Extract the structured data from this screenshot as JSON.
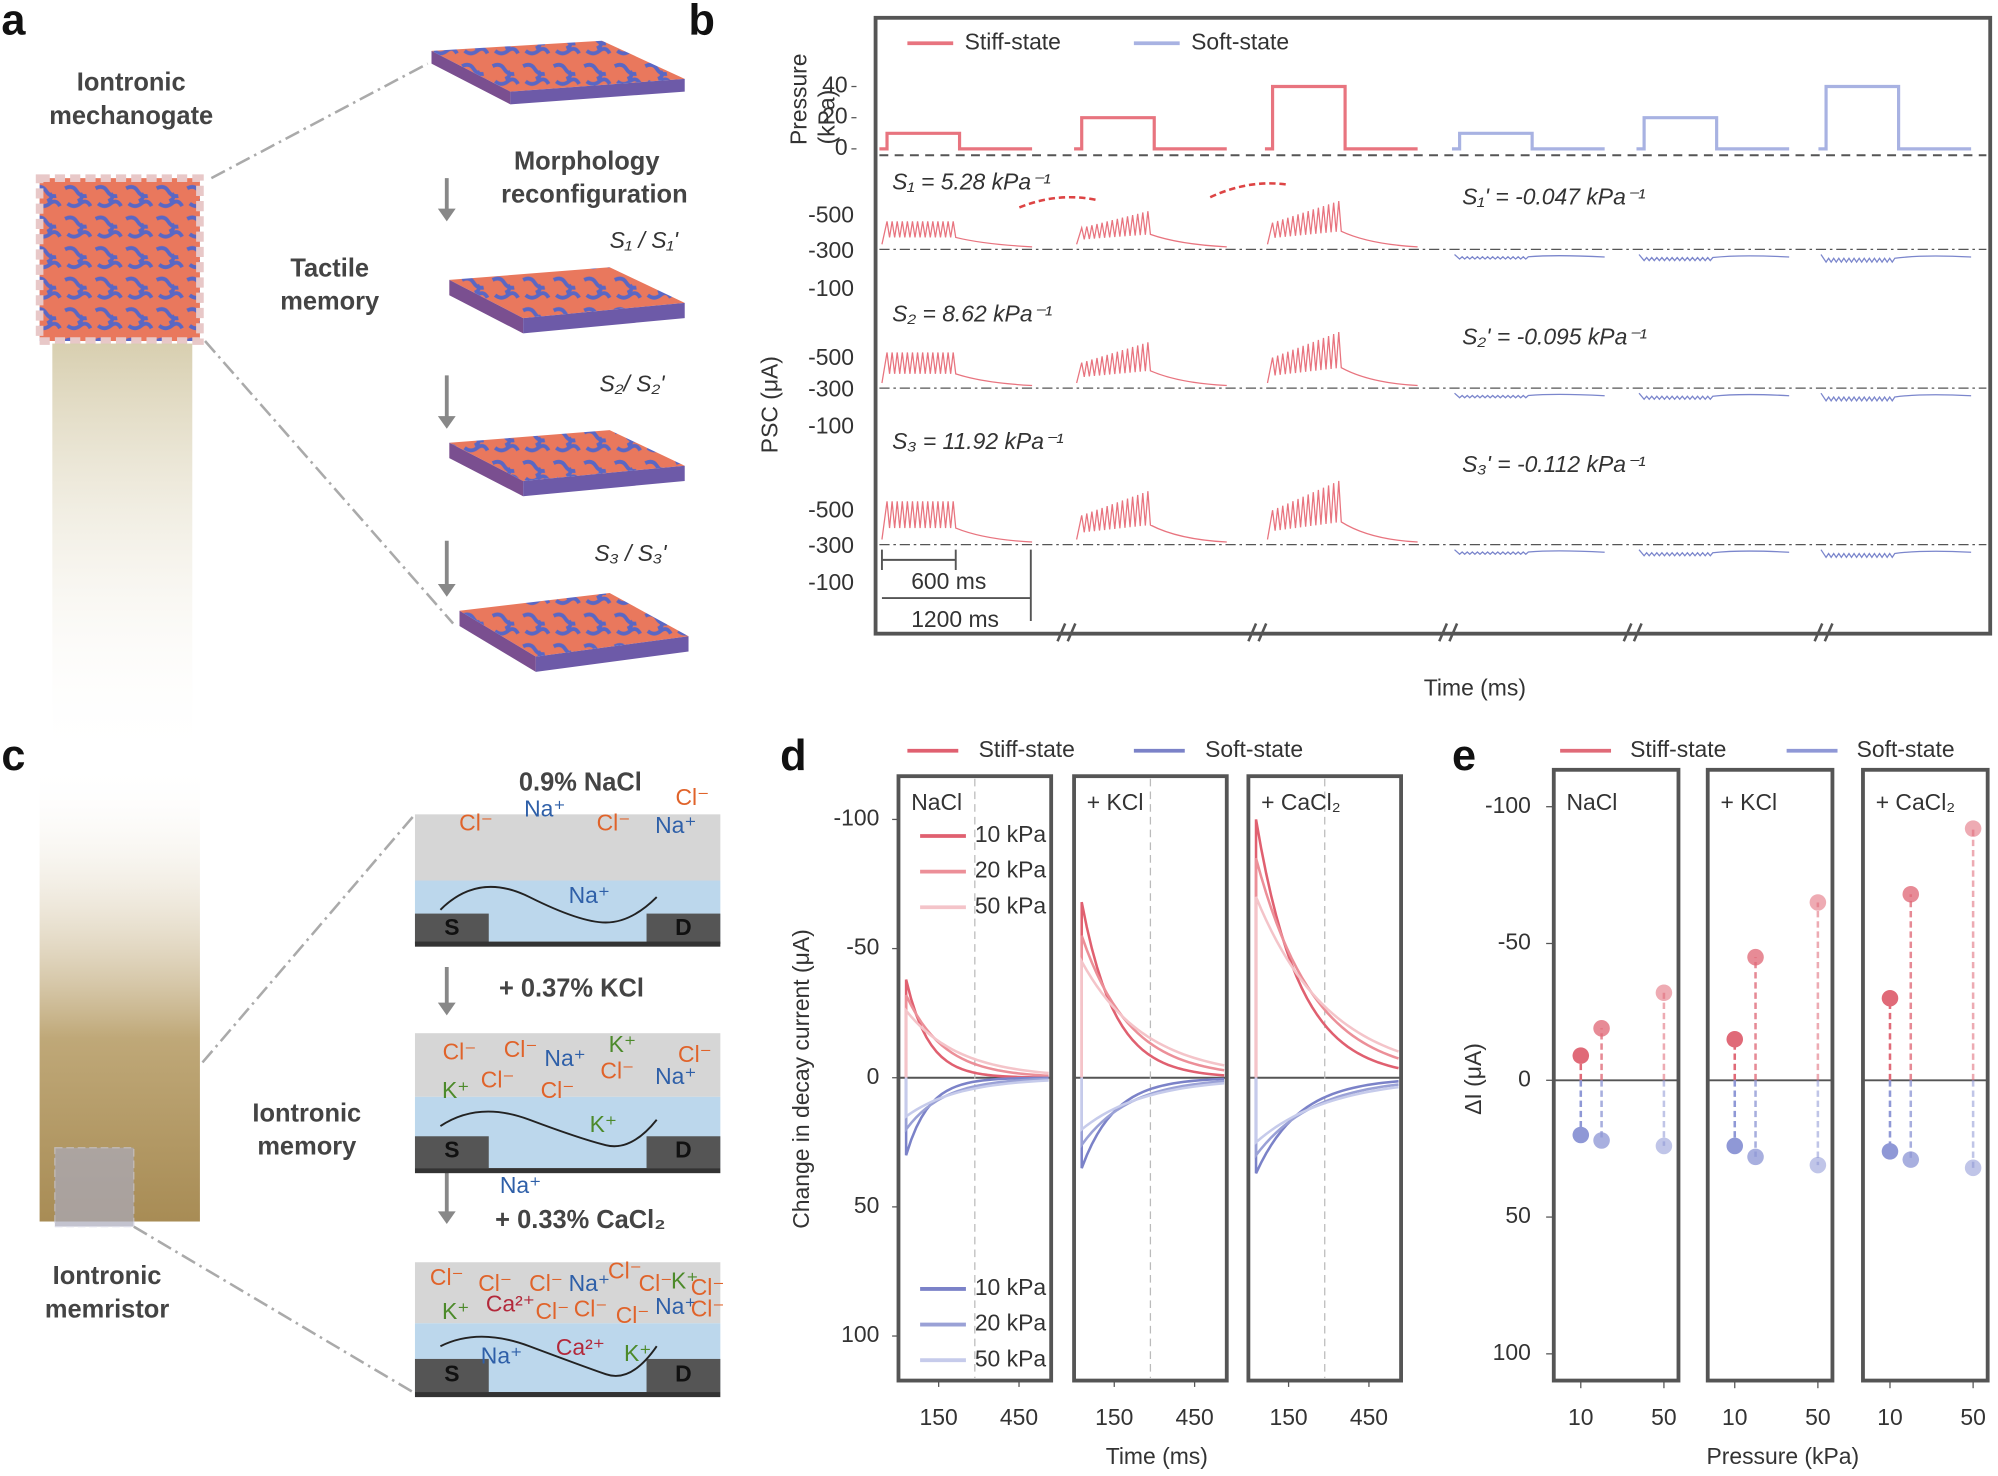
{
  "panel_labels": [
    "a",
    "b",
    "c",
    "d",
    "e"
  ],
  "panel_a": {
    "title": [
      "Iontronic",
      "mechanogate"
    ],
    "step": [
      "Morphology",
      "reconfiguration"
    ],
    "memory": [
      "Tactile",
      "memory"
    ],
    "states": [
      "S₁ / S₁'",
      "S₂/ S₂'",
      "S₃ / S₃'"
    ]
  },
  "panel_b": {
    "legend": [
      {
        "name": "Stiff-state",
        "color": "#e8747f"
      },
      {
        "name": "Soft-state",
        "color": "#a8b2e2"
      }
    ],
    "pressure_label": [
      "Pressure",
      "(kPa)"
    ],
    "pressure_ticks": [
      40,
      20,
      0
    ],
    "pressure_lim": [
      0,
      40
    ],
    "pulses": {
      "stiff": [
        10,
        20,
        40
      ],
      "soft": [
        10,
        20,
        40
      ]
    },
    "psc_label": "PSC (μA)",
    "psc_ticks": [
      -500,
      -300,
      -100
    ],
    "sens_stiff": [
      "S₁ = 5.28 kPa⁻¹",
      "S₂ = 8.62 kPa⁻¹",
      "S₃ = 11.92 kPa⁻¹"
    ],
    "sens_soft": [
      "S₁' = -0.047 kPa⁻¹",
      "S₂' = -0.095  kPa⁻¹",
      "S₃' = -0.112  kPa⁻¹"
    ],
    "scale": [
      "600 ms",
      "1200 ms"
    ],
    "xlabel": "Time (ms)"
  },
  "panel_c": {
    "steps": [
      "0.9% NaCl",
      "+ 0.37%   KCl",
      "+ 0.33%  CaCl₂"
    ],
    "memory": [
      "Iontronic",
      "memory"
    ],
    "memristor": [
      "Iontronic",
      "memristor"
    ],
    "ions": [
      [
        "Cl⁻",
        "Na⁺",
        "Cl⁻",
        "Cl⁻",
        "Na⁺",
        "Na⁺"
      ],
      [
        "Cl⁻",
        "Cl⁻",
        "Na⁺",
        "K⁺",
        "Cl⁻",
        "K⁺",
        "Cl⁻",
        "Cl⁻",
        "Cl⁻",
        "Na⁺",
        "K⁺",
        "Na⁺"
      ],
      [
        "Cl⁻",
        "Cl⁻",
        "Cl⁻",
        "Na⁺",
        "Cl⁻",
        "Cl⁻",
        "K⁺",
        "Cl⁻",
        "K⁺",
        "Ca²⁺",
        "Cl⁻",
        "Cl⁻",
        "Cl⁻",
        "Na⁺",
        "Cl⁻",
        "Na⁺",
        "Ca²⁺",
        "K⁺"
      ]
    ],
    "electrodes": [
      "S",
      "D"
    ]
  },
  "panel_d": {
    "legend": [
      "Stiff-state",
      "Soft-state"
    ],
    "colors": {
      "stiff": [
        "#e06070",
        "#ec8f98",
        "#f4c4c9"
      ],
      "soft": [
        "#7b82c8",
        "#9aa1d6",
        "#c6cbeb"
      ]
    },
    "pressures": [
      "10 kPa",
      "20 kPa",
      "50 kPa"
    ],
    "panels": [
      "NaCl",
      "+ KCl",
      "+ CaCl₂"
    ],
    "ylabel": "Change in decay current  (μA)",
    "xlabel": "Time (ms)",
    "ylim": [
      -100,
      100
    ],
    "yticks": [
      -100,
      -50,
      0,
      50,
      100
    ],
    "xlim": [
      0,
      570
    ],
    "xticks": [
      150,
      450
    ],
    "stiff_peaks": [
      [
        -38,
        -32,
        -26
      ],
      [
        -68,
        -55,
        -45
      ],
      [
        -100,
        -85,
        -70
      ]
    ],
    "soft_peaks": [
      [
        30,
        20,
        15
      ],
      [
        35,
        26,
        20
      ],
      [
        37,
        30,
        25
      ]
    ]
  },
  "panel_e": {
    "legend": [
      "Stiff-state",
      "Soft-state"
    ],
    "colors": {
      "stiff": "#e06a78",
      "soft": "#8f98d6"
    },
    "panels": [
      "NaCl",
      "+ KCl",
      "+ CaCl₂"
    ],
    "ylabel": "ΔI (μA)",
    "xlabel": "Pressure (kPa)",
    "ylim": [
      -100,
      100
    ],
    "yticks": [
      -100,
      -50,
      0,
      50,
      100
    ],
    "xlim": [
      -3,
      57
    ],
    "xticks": [
      10,
      50
    ],
    "x": [
      10,
      20,
      50
    ],
    "stiff": [
      [
        -9,
        -19,
        -32
      ],
      [
        -15,
        -45,
        -65
      ],
      [
        -30,
        -68,
        -92
      ]
    ],
    "soft": [
      [
        20,
        22,
        24
      ],
      [
        24,
        28,
        31
      ],
      [
        26,
        29,
        32
      ]
    ]
  }
}
